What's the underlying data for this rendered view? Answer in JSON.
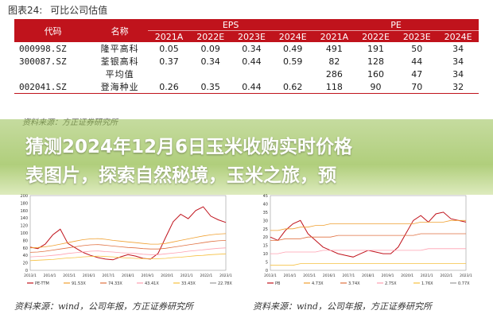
{
  "figure": {
    "label": "图表24:",
    "title": "可比公司估值"
  },
  "table": {
    "col_code": "代码",
    "col_name": "名称",
    "group_eps": "EPS",
    "group_pe": "PE",
    "years": [
      "2021A",
      "2022E",
      "2023E",
      "2024E",
      "2021A",
      "2022E",
      "2023E",
      "2024E"
    ],
    "rows": [
      {
        "code": "000998.SZ",
        "name": "隆平高科",
        "values": [
          "0.05",
          "0.09",
          "0.34",
          "0.49",
          "491",
          "191",
          "50",
          "34"
        ]
      },
      {
        "code": "300087.SZ",
        "name": "荃银高科",
        "values": [
          "0.37",
          "0.34",
          "0.44",
          "0.59",
          "82",
          "128",
          "44",
          "34"
        ]
      },
      {
        "code": "",
        "name": "平均值",
        "values": [
          "",
          "",
          "",
          "",
          "286",
          "160",
          "47",
          "34"
        ]
      },
      {
        "code": "002041.SZ",
        "name": "登海种业",
        "values": [
          "0.26",
          "0.35",
          "0.44",
          "0.62",
          "118",
          "90",
          "70",
          "32"
        ]
      }
    ]
  },
  "source_top": "资料来源：方正证券研究所",
  "overlay_title": [
    "猜测2024年12月6日玉米收购实时价格",
    "表图片，探索自然秘境，玉米之旅，预"
  ],
  "source_bottom_left": "资料来源：wind，公司年报，方正证券研究所",
  "source_bottom_right": "资料来源：wind，公司年报，方正证券研究所",
  "colors": {
    "table_header": "#c0131c",
    "overlay": "#96be50"
  },
  "chart_data": [
    {
      "type": "line",
      "x_ticks": [
        "2013/1",
        "2014/1",
        "2015/1",
        "2016/1",
        "2017/1",
        "2018/1",
        "2019/1",
        "2020/1",
        "2021/1",
        "2022/1",
        "2023/1"
      ],
      "y_ticks": [
        "200",
        "180",
        "160",
        "140",
        "120",
        "100",
        "80",
        "60",
        "40",
        "20",
        "0"
      ],
      "ylim": [
        0,
        200
      ],
      "legend": [
        "PE-TTM",
        "91.53X",
        "74.33X",
        "43.41X",
        "33.43X",
        "22.78X"
      ],
      "series": [
        {
          "color": "#c0131c",
          "values": [
            62,
            58,
            70,
            95,
            110,
            72,
            60,
            48,
            40,
            34,
            30,
            28,
            36,
            42,
            38,
            32,
            30,
            45,
            88,
            130,
            150,
            138,
            160,
            170,
            145,
            135,
            128
          ]
        },
        {
          "color": "#f0a030",
          "values": [
            60,
            61,
            63,
            66,
            70,
            74,
            78,
            82,
            84,
            85,
            83,
            80,
            78,
            76,
            74,
            72,
            70,
            70,
            72,
            76,
            80,
            84,
            88,
            92,
            95,
            97,
            98
          ]
        },
        {
          "color": "#e07040",
          "values": [
            48,
            49,
            51,
            54,
            57,
            60,
            63,
            66,
            68,
            69,
            67,
            65,
            63,
            61,
            60,
            58,
            57,
            57,
            59,
            62,
            65,
            68,
            71,
            74,
            77,
            79,
            80
          ]
        },
        {
          "color": "#ffa0b0",
          "values": [
            36,
            37,
            38,
            40,
            42,
            45,
            47,
            49,
            51,
            52,
            50,
            49,
            47,
            46,
            45,
            43,
            42,
            42,
            44,
            46,
            48,
            51,
            53,
            55,
            57,
            59,
            60
          ]
        },
        {
          "color": "#f6c040",
          "values": [
            26,
            27,
            28,
            29,
            31,
            33,
            34,
            36,
            37,
            38,
            37,
            36,
            34,
            33,
            32,
            31,
            31,
            31,
            32,
            34,
            35,
            37,
            39,
            40,
            42,
            43,
            44
          ]
        }
      ]
    },
    {
      "type": "line",
      "x_ticks": [
        "2013/1",
        "2014/1",
        "2015/1",
        "2016/1",
        "2017/1",
        "2018/1",
        "2019/1",
        "2020/1",
        "2021/1",
        "2022/1",
        "2023/1"
      ],
      "y_ticks": [
        "45",
        "40",
        "35",
        "30",
        "25",
        "20",
        "15",
        "10",
        "5",
        "0"
      ],
      "ylim": [
        0,
        45
      ],
      "legend": [
        "PB",
        "4.73X",
        "3.74X",
        "2.75X",
        "1.76X",
        "0.77X"
      ],
      "series": [
        {
          "color": "#c0131c",
          "values": [
            20,
            18,
            24,
            28,
            30,
            22,
            18,
            14,
            12,
            10,
            9,
            8,
            10,
            12,
            11,
            10,
            10,
            14,
            22,
            30,
            33,
            29,
            34,
            35,
            31,
            30,
            29
          ]
        },
        {
          "color": "#f0a030",
          "values": [
            24,
            24,
            25,
            25,
            26,
            26,
            27,
            27,
            28,
            28,
            28,
            28,
            28,
            28,
            28,
            28,
            28,
            28,
            28,
            28,
            29,
            29,
            29,
            29,
            30,
            30,
            30
          ]
        },
        {
          "color": "#e07040",
          "values": [
            18,
            18,
            19,
            19,
            19,
            20,
            20,
            20,
            20,
            21,
            21,
            21,
            21,
            21,
            21,
            21,
            21,
            21,
            21,
            21,
            22,
            22,
            22,
            22,
            22,
            22,
            22
          ]
        },
        {
          "color": "#ffa0b0",
          "values": [
            10,
            10,
            11,
            11,
            11,
            11,
            11,
            12,
            12,
            12,
            12,
            12,
            12,
            12,
            12,
            12,
            12,
            12,
            12,
            12,
            12,
            13,
            13,
            13,
            13,
            13,
            13
          ]
        },
        {
          "color": "#f6c040",
          "values": [
            3,
            3,
            3,
            3,
            4,
            4,
            4,
            4,
            4,
            4,
            4,
            4,
            4,
            4,
            4,
            4,
            4,
            4,
            4,
            4,
            4,
            4,
            4,
            4,
            4,
            4,
            4
          ]
        }
      ]
    }
  ]
}
